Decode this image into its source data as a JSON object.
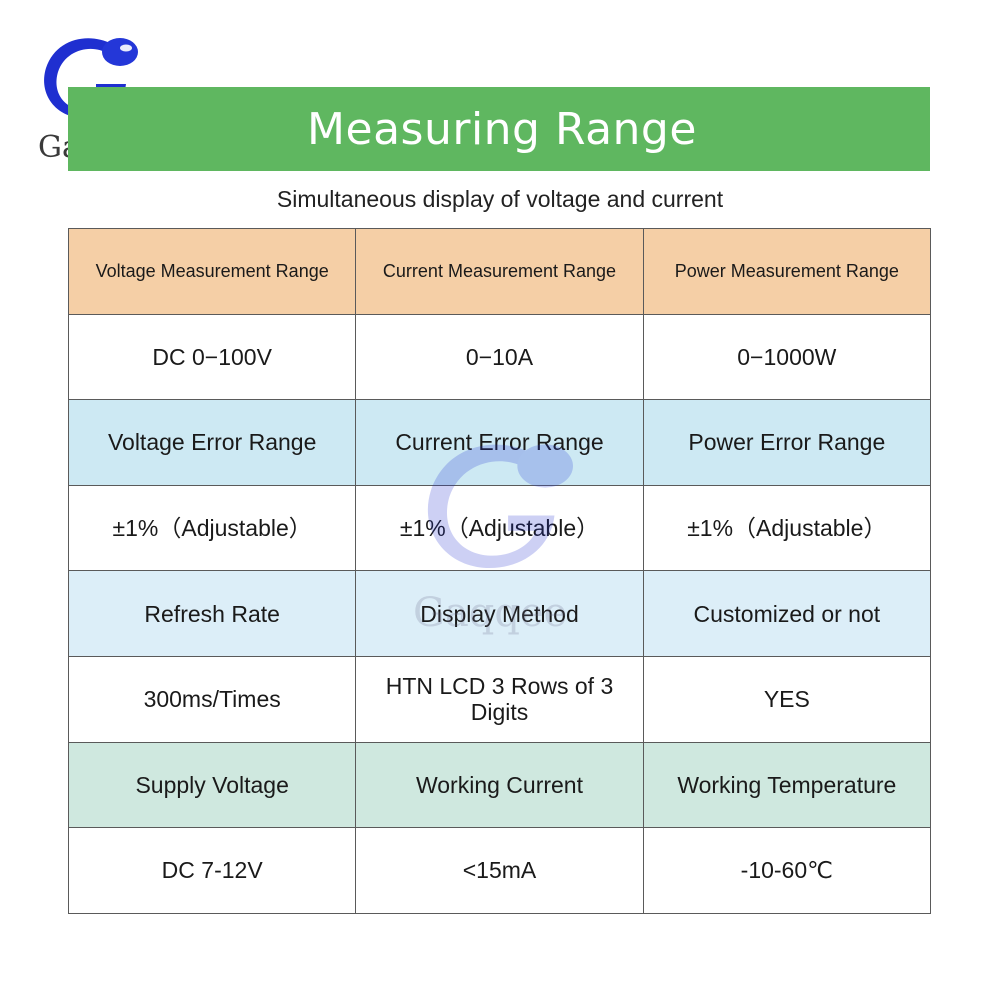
{
  "brand": {
    "name": "Gaqqee",
    "accent": "#5fb760",
    "logo_color": "#1f2fd0"
  },
  "banner": {
    "title": "Measuring Range"
  },
  "subtitle": "Simultaneous display of voltage and current",
  "table": {
    "rows": [
      {
        "style": "head",
        "cells": [
          "Voltage Measurement Range",
          "Current Measurement Range",
          "Power Measurement Range"
        ]
      },
      {
        "style": "white",
        "cells": [
          "DC 0−100V",
          "0−10A",
          "0−1000W"
        ]
      },
      {
        "style": "blue",
        "cells": [
          "Voltage Error Range",
          "Current Error Range",
          "Power Error Range"
        ]
      },
      {
        "style": "white",
        "cells": [
          "±1%（Adjustable）",
          "±1%（Adjustable）",
          "±1%（Adjustable）"
        ]
      },
      {
        "style": "lightblue",
        "cells": [
          "Refresh Rate",
          "Display Method",
          "Customized or not"
        ]
      },
      {
        "style": "white",
        "cells": [
          "300ms/Times",
          "HTN LCD 3 Rows of 3 Digits",
          "YES"
        ]
      },
      {
        "style": "green",
        "cells": [
          "Supply Voltage",
          "Working Current",
          "Working Temperature"
        ]
      },
      {
        "style": "white",
        "cells": [
          "DC 7-12V",
          "<15mA",
          "-10-60℃"
        ]
      }
    ]
  },
  "watermark": {
    "text": "Gaqqee"
  }
}
